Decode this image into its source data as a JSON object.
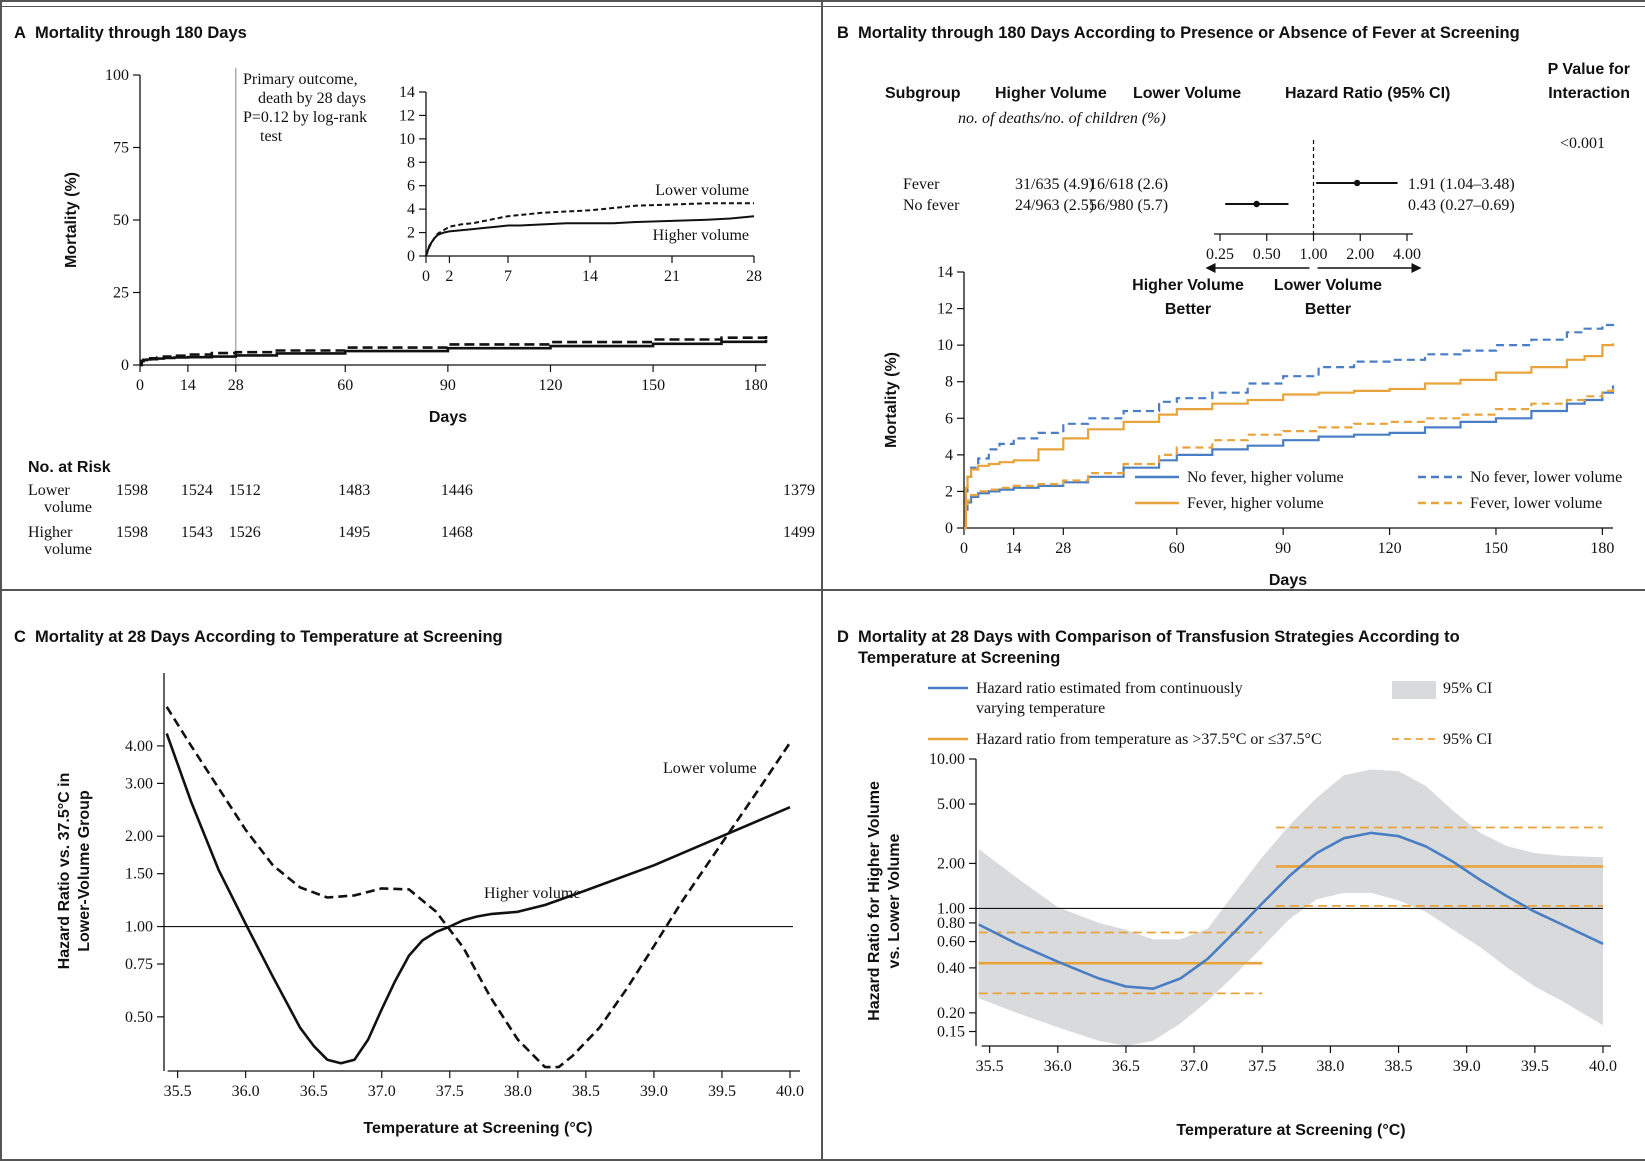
{
  "colors": {
    "blue": "#4a7ec4",
    "orange": "#e8a33b",
    "ci_fill": "#d9dadc",
    "border": "#555555"
  },
  "panels": {
    "A": {
      "letter": "A",
      "title": "Mortality through 180 Days"
    },
    "B": {
      "letter": "B",
      "title": "Mortality through 180 Days According to Presence or Absence of Fever at Screening"
    },
    "C": {
      "letter": "C",
      "title": "Mortality at 28 Days According to Temperature at Screening"
    },
    "D": {
      "letter": "D",
      "title_line1": "Mortality at 28 Days with Comparison of Transfusion Strategies According to",
      "title_line2": "Temperature at Screening"
    }
  },
  "chart_data": [
    {
      "id": "A",
      "type": "line",
      "xlabel": "Days",
      "ylabel": "Mortality (%)",
      "xlim": [
        0,
        183
      ],
      "ylim": [
        0,
        100
      ],
      "xticks": [
        0,
        14,
        28,
        60,
        90,
        120,
        150,
        180
      ],
      "yticks": [
        0,
        25,
        50,
        75,
        100
      ],
      "primary_marker_x": 28,
      "annotation": [
        "Primary outcome,",
        "death by 28 days",
        "P=0.12 by log-rank",
        "test"
      ],
      "series": [
        {
          "name": "Lower volume",
          "style": "dashed",
          "x": [
            0,
            0.5,
            1,
            2,
            3,
            5,
            7,
            10,
            14,
            21,
            28,
            40,
            60,
            90,
            120,
            150,
            170,
            183
          ],
          "y": [
            0,
            1.3,
            1.8,
            2.0,
            2.3,
            2.6,
            2.9,
            3.2,
            3.6,
            4.1,
            4.4,
            5.0,
            6.0,
            7.1,
            7.9,
            8.8,
            9.4,
            10.0
          ]
        },
        {
          "name": "Higher volume",
          "style": "solid",
          "x": [
            0,
            0.5,
            1,
            2,
            3,
            5,
            7,
            10,
            14,
            21,
            28,
            40,
            60,
            90,
            120,
            150,
            170,
            183
          ],
          "y": [
            0,
            1.4,
            1.7,
            1.9,
            2.0,
            2.2,
            2.4,
            2.6,
            2.7,
            2.9,
            3.3,
            4.0,
            4.8,
            5.8,
            6.5,
            7.3,
            8.0,
            8.7
          ]
        }
      ],
      "inset": {
        "xlim": [
          0,
          28
        ],
        "ylim": [
          0,
          14
        ],
        "xticks": [
          0,
          2,
          7,
          14,
          21,
          28
        ],
        "yticks": [
          0,
          2,
          4,
          6,
          8,
          10,
          12,
          14
        ],
        "series": [
          {
            "name": "Lower volume",
            "style": "dashed",
            "x": [
              0,
              0.3,
              0.7,
              1,
              1.5,
              2,
              3,
              4,
              5,
              6,
              7,
              8,
              10,
              12,
              14,
              16,
              18,
              21,
              24,
              26,
              28
            ],
            "y": [
              0,
              0.8,
              1.5,
              1.9,
              2.2,
              2.5,
              2.7,
              2.8,
              3.0,
              3.2,
              3.4,
              3.5,
              3.7,
              3.8,
              3.9,
              4.1,
              4.3,
              4.4,
              4.5,
              4.5,
              4.5
            ]
          },
          {
            "name": "Higher volume",
            "style": "solid",
            "x": [
              0,
              0.3,
              0.7,
              1,
              1.5,
              2,
              3,
              4,
              5,
              6,
              7,
              8,
              10,
              12,
              14,
              16,
              18,
              21,
              24,
              26,
              28
            ],
            "y": [
              0,
              0.9,
              1.5,
              1.8,
              2.0,
              2.1,
              2.2,
              2.3,
              2.4,
              2.5,
              2.6,
              2.6,
              2.7,
              2.8,
              2.8,
              2.8,
              2.9,
              3.0,
              3.1,
              3.2,
              3.4
            ]
          }
        ]
      },
      "at_risk": {
        "title": "No. at Risk",
        "rows": [
          {
            "label": [
              "Lower",
              "volume"
            ],
            "x": [
              0,
              14,
              28,
              60,
              90,
              180
            ],
            "values": [
              "1598",
              "1524",
              "1512",
              "1483",
              "1446",
              "1379"
            ]
          },
          {
            "label": [
              "Higher",
              "volume"
            ],
            "x": [
              0,
              14,
              28,
              60,
              90,
              180
            ],
            "values": [
              "1598",
              "1543",
              "1526",
              "1495",
              "1468",
              "1499"
            ]
          }
        ]
      }
    },
    {
      "id": "B",
      "type": "line",
      "xlabel": "Days",
      "ylabel": "Mortality (%)",
      "xlim": [
        0,
        183
      ],
      "ylim": [
        0,
        14
      ],
      "xticks": [
        0,
        14,
        28,
        60,
        90,
        120,
        150,
        180
      ],
      "yticks": [
        0,
        2,
        4,
        6,
        8,
        10,
        12,
        14
      ],
      "forest": {
        "headers": {
          "subgroup": "Subgroup",
          "higher": "Higher Volume",
          "lower": "Lower Volume",
          "sub": "no. of deaths/no. of children (%)",
          "hr": "Hazard Ratio (95% CI)",
          "pval1": "P Value for",
          "pval2": "Interaction"
        },
        "p_interaction": "<0.001",
        "rows": [
          {
            "subgroup": "Fever",
            "higher": "31/635 (4.9)",
            "lower": "16/618 (2.6)",
            "hr": 1.91,
            "lo": 1.04,
            "hi": 3.48,
            "hr_text": "1.91 (1.04–3.48)"
          },
          {
            "subgroup": "No fever",
            "higher": "24/963 (2.5)",
            "lower": "56/980 (5.7)",
            "hr": 0.43,
            "lo": 0.27,
            "hi": 0.69,
            "hr_text": "0.43 (0.27–0.69)"
          }
        ],
        "axis_ticks": [
          0.25,
          0.5,
          1.0,
          2.0,
          4.0
        ],
        "axis_tick_labels": [
          "0.25",
          "0.50",
          "1.00",
          "2.00",
          "4.00"
        ],
        "left_label": [
          "Higher Volume",
          "Better"
        ],
        "right_label": [
          "Lower Volume",
          "Better"
        ]
      },
      "series": [
        {
          "name": "No fever, higher volume",
          "color": "blue",
          "style": "solid",
          "x": [
            0,
            0.5,
            1,
            2,
            4,
            7,
            10,
            14,
            21,
            28,
            35,
            45,
            55,
            60,
            70,
            80,
            90,
            100,
            110,
            120,
            130,
            140,
            150,
            160,
            170,
            175,
            180,
            183
          ],
          "y": [
            0,
            1.0,
            1.4,
            1.7,
            1.9,
            2.0,
            2.1,
            2.2,
            2.3,
            2.5,
            2.8,
            3.3,
            3.7,
            4.0,
            4.3,
            4.5,
            4.8,
            5.0,
            5.1,
            5.2,
            5.5,
            5.8,
            6.0,
            6.4,
            6.8,
            7.0,
            7.4,
            7.8
          ]
        },
        {
          "name": "No fever, lower volume",
          "color": "blue",
          "style": "dashed",
          "x": [
            0,
            0.5,
            1,
            2,
            4,
            7,
            10,
            14,
            21,
            28,
            35,
            45,
            55,
            60,
            70,
            80,
            90,
            100,
            110,
            120,
            130,
            140,
            150,
            160,
            170,
            175,
            180,
            183
          ],
          "y": [
            0,
            2.0,
            2.8,
            3.3,
            3.8,
            4.3,
            4.6,
            4.9,
            5.2,
            5.7,
            6.0,
            6.4,
            6.9,
            7.1,
            7.4,
            7.9,
            8.3,
            8.8,
            9.1,
            9.2,
            9.5,
            9.7,
            10.0,
            10.3,
            10.7,
            10.9,
            11.1,
            11.2
          ]
        },
        {
          "name": "Fever, higher volume",
          "color": "orange",
          "style": "solid",
          "x": [
            0,
            0.5,
            1,
            2,
            4,
            7,
            10,
            14,
            21,
            28,
            35,
            45,
            55,
            60,
            70,
            80,
            90,
            100,
            110,
            120,
            130,
            140,
            150,
            160,
            170,
            175,
            180,
            183
          ],
          "y": [
            0,
            2.2,
            2.8,
            3.2,
            3.4,
            3.5,
            3.6,
            3.7,
            4.3,
            4.9,
            5.4,
            5.8,
            6.2,
            6.5,
            6.8,
            7.0,
            7.3,
            7.4,
            7.5,
            7.6,
            7.9,
            8.1,
            8.5,
            8.8,
            9.2,
            9.4,
            10.0,
            10.1
          ]
        },
        {
          "name": "Fever, lower volume",
          "color": "orange",
          "style": "dashed",
          "x": [
            0,
            0.5,
            1,
            2,
            4,
            7,
            10,
            14,
            21,
            28,
            35,
            45,
            55,
            60,
            70,
            80,
            90,
            100,
            110,
            120,
            130,
            140,
            150,
            160,
            170,
            175,
            180,
            183
          ],
          "y": [
            0,
            1.0,
            1.5,
            1.8,
            2.0,
            2.1,
            2.2,
            2.3,
            2.4,
            2.6,
            3.0,
            3.5,
            4.0,
            4.4,
            4.8,
            5.1,
            5.3,
            5.5,
            5.7,
            5.8,
            6.0,
            6.2,
            6.5,
            6.8,
            7.0,
            7.2,
            7.5,
            7.6
          ]
        }
      ],
      "legend": {
        "placement": "inside-bottom-right"
      }
    },
    {
      "id": "C",
      "type": "line",
      "xlabel": "Temperature at Screening (°C)",
      "ylabel": [
        "Hazard Ratio vs. 37.5°C in",
        "Lower-Volume Group"
      ],
      "yscale": "log",
      "xlim": [
        35.4,
        40.0
      ],
      "ylim": [
        0.33,
        7.0
      ],
      "xticks": [
        35.5,
        36.0,
        36.5,
        37.0,
        37.5,
        38.0,
        38.5,
        39.0,
        39.5,
        40.0
      ],
      "yticks": [
        0.5,
        0.75,
        1.0,
        1.5,
        2.0,
        3.0,
        4.0
      ],
      "ytick_labels": [
        "0.50",
        "0.75",
        "1.00",
        "1.50",
        "2.00",
        "3.00",
        "4.00"
      ],
      "reference_line": 1.0,
      "series": [
        {
          "name": "Higher volume",
          "style": "solid",
          "x": [
            35.42,
            35.6,
            35.8,
            36.0,
            36.2,
            36.4,
            36.5,
            36.6,
            36.7,
            36.8,
            36.9,
            37.0,
            37.1,
            37.2,
            37.3,
            37.4,
            37.5,
            37.6,
            37.7,
            37.8,
            38.0,
            38.2,
            38.5,
            39.0,
            39.5,
            40.0
          ],
          "y": [
            4.4,
            2.6,
            1.55,
            1.02,
            0.68,
            0.46,
            0.4,
            0.36,
            0.35,
            0.36,
            0.42,
            0.53,
            0.66,
            0.8,
            0.9,
            0.96,
            1.0,
            1.05,
            1.08,
            1.1,
            1.12,
            1.18,
            1.32,
            1.6,
            2.0,
            2.5
          ]
        },
        {
          "name": "Lower volume",
          "style": "dashed",
          "x": [
            35.42,
            35.6,
            35.8,
            36.0,
            36.2,
            36.4,
            36.6,
            36.8,
            37.0,
            37.2,
            37.4,
            37.6,
            37.8,
            38.0,
            38.2,
            38.3,
            38.4,
            38.6,
            38.8,
            39.0,
            39.2,
            39.5,
            39.8,
            40.0
          ],
          "y": [
            5.4,
            4.0,
            2.9,
            2.1,
            1.6,
            1.35,
            1.25,
            1.27,
            1.34,
            1.33,
            1.12,
            0.85,
            0.58,
            0.42,
            0.34,
            0.34,
            0.37,
            0.46,
            0.62,
            0.86,
            1.2,
            1.9,
            3.0,
            4.1
          ]
        }
      ]
    },
    {
      "id": "D",
      "type": "line",
      "xlabel": "Temperature at Screening (°C)",
      "ylabel": [
        "Hazard Ratio for Higher Volume",
        "vs. Lower Volume"
      ],
      "yscale": "log",
      "xlim": [
        35.4,
        40.0
      ],
      "ylim": [
        0.12,
        10.0
      ],
      "xticks": [
        35.5,
        36.0,
        36.5,
        37.0,
        37.5,
        38.0,
        38.5,
        39.0,
        39.5,
        40.0
      ],
      "yticks": [
        0.15,
        0.2,
        0.4,
        0.6,
        0.8,
        1.0,
        2.0,
        5.0,
        10.0
      ],
      "ytick_labels": [
        "0.15",
        "0.20",
        "0.40",
        "0.60",
        "0.80",
        "1.00",
        "2.00",
        "5.00",
        "10.00"
      ],
      "reference_line": 1.0,
      "legend": [
        {
          "label": [
            "Hazard ratio estimated from continuously",
            "varying temperature"
          ],
          "kind": "blue-line"
        },
        {
          "label": [
            "95% CI"
          ],
          "kind": "gray-box"
        },
        {
          "label": [
            "Hazard ratio from temperature as >37.5°C or ≤37.5°C"
          ],
          "kind": "orange-line"
        },
        {
          "label": [
            "95% CI"
          ],
          "kind": "orange-dash"
        }
      ],
      "series": [
        {
          "name": "Hazard ratio estimated from continuously varying temperature",
          "color": "blue",
          "style": "solid",
          "x": [
            35.42,
            35.7,
            36.0,
            36.3,
            36.5,
            36.7,
            36.9,
            37.1,
            37.3,
            37.5,
            37.7,
            37.9,
            38.1,
            38.3,
            38.5,
            38.7,
            38.9,
            39.1,
            39.3,
            39.5,
            39.7,
            40.0
          ],
          "y": [
            0.78,
            0.58,
            0.44,
            0.34,
            0.3,
            0.29,
            0.34,
            0.46,
            0.7,
            1.08,
            1.65,
            2.35,
            2.95,
            3.2,
            3.05,
            2.6,
            2.05,
            1.55,
            1.2,
            0.95,
            0.78,
            0.58
          ]
        }
      ],
      "ci_band": {
        "x": [
          35.42,
          35.7,
          36.0,
          36.3,
          36.5,
          36.7,
          36.9,
          37.1,
          37.3,
          37.5,
          37.7,
          37.9,
          38.1,
          38.3,
          38.5,
          38.7,
          38.9,
          39.1,
          39.3,
          39.5,
          39.7,
          40.0
        ],
        "lo": [
          0.25,
          0.2,
          0.16,
          0.13,
          0.12,
          0.13,
          0.17,
          0.24,
          0.36,
          0.55,
          0.85,
          1.15,
          1.27,
          1.27,
          1.13,
          0.95,
          0.72,
          0.55,
          0.4,
          0.3,
          0.24,
          0.165
        ],
        "hi": [
          2.5,
          1.6,
          1.02,
          0.8,
          0.72,
          0.62,
          0.62,
          0.73,
          1.28,
          2.2,
          3.6,
          5.5,
          7.8,
          8.5,
          8.3,
          6.6,
          4.5,
          3.2,
          2.6,
          2.35,
          2.25,
          2.2
        ]
      },
      "categorical": [
        {
          "x0": 35.42,
          "x1": 37.5,
          "hr": 0.43,
          "lo": 0.27,
          "hi": 0.69
        },
        {
          "x0": 37.6,
          "x1": 40.0,
          "hr": 1.91,
          "lo": 1.04,
          "hi": 3.48
        }
      ]
    }
  ]
}
